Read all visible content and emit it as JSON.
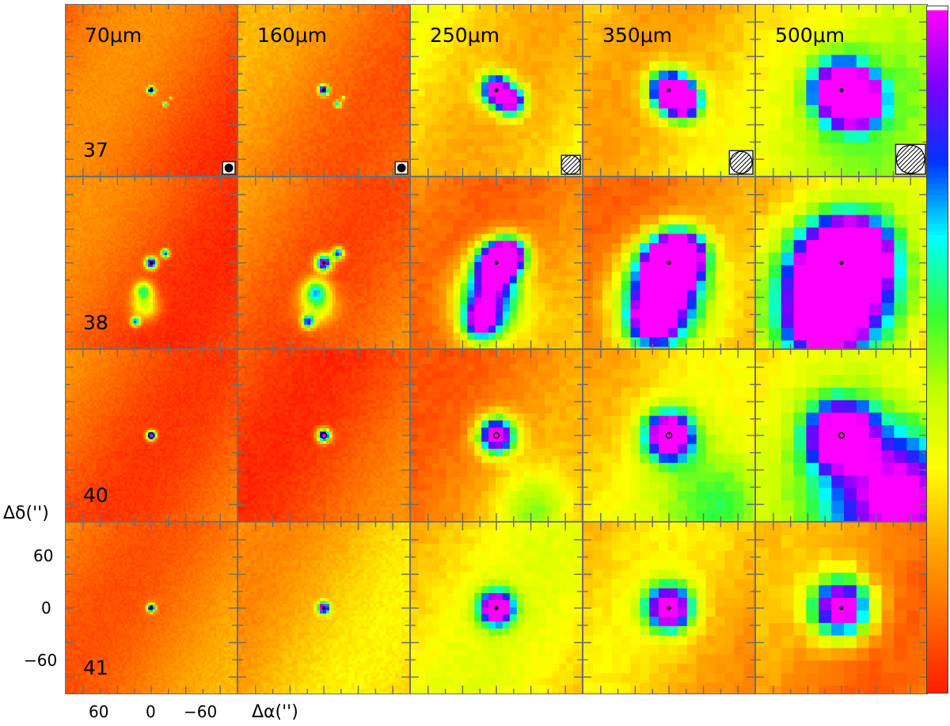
{
  "figure": {
    "wavelengths": [
      "70μm",
      "160μm",
      "250μm",
      "350μm",
      "500μm"
    ],
    "sources": [
      "37",
      "38",
      "40",
      "41"
    ],
    "axes": {
      "ylabel": "Δδ('')",
      "xlabel": "Δα('')",
      "yticks": [
        "60",
        "0",
        "−60"
      ],
      "xticks": [
        "60",
        "0",
        "−60"
      ]
    }
  },
  "colormap": {
    "stops": [
      "#ff1a00",
      "#ff6600",
      "#ffaa00",
      "#ffff00",
      "#bfff00",
      "#33ff33",
      "#00ffff",
      "#0033ff",
      "#7a00ff",
      "#ff00ff"
    ],
    "top_color": "#ffffff"
  },
  "beam_markers": {
    "70μm": "filled",
    "160μm": "filled",
    "250μm": "hatched",
    "350μm": "hatched",
    "500μm": "hatched"
  },
  "icons": {
    "beam": "beam-ellipse-icon",
    "source_center": "source-center-marker-icon"
  }
}
